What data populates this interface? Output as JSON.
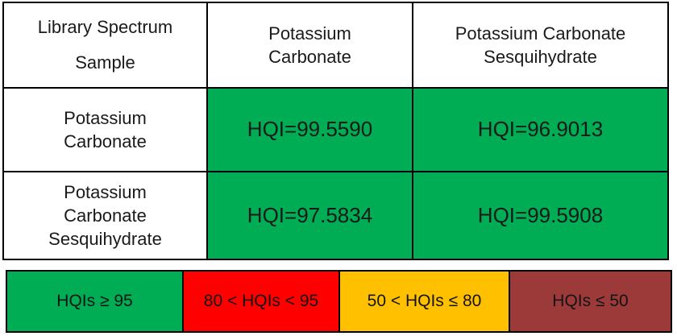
{
  "colors": {
    "pass_green": "#00AC54",
    "fail_red": "#FE0000",
    "warn_yellow": "#FFC000",
    "bad_maroon": "#9C3A3A",
    "border_black": "#000000",
    "text_black": "#1A1A1A"
  },
  "matrix_table": {
    "corner": {
      "line1": "Library Spectrum",
      "line2": "Sample"
    },
    "column_headers": [
      "Potassium\nCarbonate",
      "Potassium Carbonate\nSesquihydrate"
    ],
    "rows": [
      {
        "label": "Potassium\nCarbonate",
        "cells": [
          {
            "text": "HQI=99.5590",
            "bg": "#00AC54"
          },
          {
            "text": "HQI=96.9013",
            "bg": "#00AC54"
          }
        ]
      },
      {
        "label": "Potassium\nCarbonate\nSesquihydrate",
        "cells": [
          {
            "text": "HQI=97.5834",
            "bg": "#00AC54"
          },
          {
            "text": "HQI=99.5908",
            "bg": "#00AC54"
          }
        ]
      }
    ]
  },
  "legend": {
    "items": [
      {
        "label": "HQIs ≥ 95",
        "color": "#00AC54"
      },
      {
        "label": "80 < HQIs < 95",
        "color": "#FE0000"
      },
      {
        "label": "50 < HQIs ≤ 80",
        "color": "#FFC000"
      },
      {
        "label": "HQIs ≤ 50",
        "color": "#9C3A3A"
      }
    ]
  },
  "chart_data": {
    "type": "table",
    "title": "",
    "corner_header": "Library Spectrum / Sample",
    "columns": [
      "Potassium Carbonate",
      "Potassium Carbonate Sesquihydrate"
    ],
    "rows": [
      {
        "sample": "Potassium Carbonate",
        "values": [
          99.559,
          96.9013
        ]
      },
      {
        "sample": "Potassium Carbonate Sesquihydrate",
        "values": [
          97.5834,
          99.5908
        ]
      }
    ],
    "cell_text_format": "HQI=<value>",
    "color_legend": [
      {
        "range": "HQIs ≥ 95",
        "color": "#00AC54"
      },
      {
        "range": "80 < HQIs < 95",
        "color": "#FE0000"
      },
      {
        "range": "50 < HQIs ≤ 80",
        "color": "#FFC000"
      },
      {
        "range": "HQIs ≤ 50",
        "color": "#9C3A3A"
      }
    ],
    "layout_hints": {
      "all_cells_colored": "green",
      "legend_position": "bottom"
    }
  }
}
